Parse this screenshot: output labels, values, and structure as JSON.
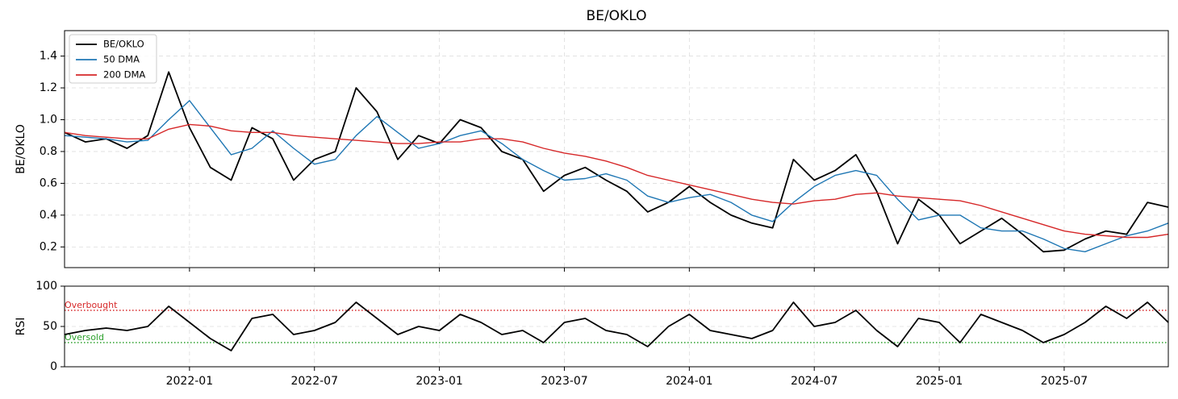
{
  "chart_data": [
    {
      "type": "line",
      "title": "BE/OKLO",
      "y_label": "BE/OKLO",
      "grid": true,
      "legend": "upper left",
      "x": [
        "2021-07",
        "2021-08",
        "2021-09",
        "2021-10",
        "2021-11",
        "2021-12",
        "2022-01",
        "2022-02",
        "2022-03",
        "2022-04",
        "2022-05",
        "2022-06",
        "2022-07",
        "2022-08",
        "2022-09",
        "2022-10",
        "2022-11",
        "2022-12",
        "2023-01",
        "2023-02",
        "2023-03",
        "2023-04",
        "2023-05",
        "2023-06",
        "2023-07",
        "2023-08",
        "2023-09",
        "2023-10",
        "2023-11",
        "2023-12",
        "2024-01",
        "2024-02",
        "2024-03",
        "2024-04",
        "2024-05",
        "2024-06",
        "2024-07",
        "2024-08",
        "2024-09",
        "2024-10",
        "2024-11",
        "2024-12",
        "2025-01",
        "2025-02",
        "2025-03",
        "2025-04",
        "2025-05",
        "2025-06",
        "2025-07",
        "2025-08",
        "2025-09",
        "2025-10",
        "2025-11",
        "2025-12"
      ],
      "xlim": [
        "2021-07",
        "2025-12"
      ],
      "ylim": [
        0.07,
        1.56
      ],
      "yticks": [
        0.2,
        0.4,
        0.6,
        0.8,
        {
          "value": 1,
          "label": "1.0"
        },
        1.2,
        1.4
      ],
      "series": [
        {
          "name": "BE/OKLO",
          "color": "#000000",
          "values": [
            0.92,
            0.86,
            0.88,
            0.82,
            0.9,
            1.3,
            0.95,
            0.7,
            0.62,
            0.95,
            0.88,
            0.62,
            0.75,
            0.8,
            1.2,
            1.05,
            0.75,
            0.9,
            0.85,
            1.0,
            0.95,
            0.8,
            0.75,
            0.55,
            0.65,
            0.7,
            0.62,
            0.55,
            0.42,
            0.48,
            0.58,
            0.48,
            0.4,
            0.35,
            0.32,
            0.75,
            0.62,
            0.68,
            0.78,
            0.55,
            0.22,
            0.5,
            0.4,
            0.22,
            0.3,
            0.38,
            0.28,
            0.17,
            0.18,
            0.25,
            0.3,
            0.28,
            0.48,
            0.45
          ]
        },
        {
          "name": "50 DMA",
          "color": "#1f77b4",
          "values": [
            0.9,
            0.89,
            0.88,
            0.86,
            0.87,
            1.0,
            1.12,
            0.95,
            0.78,
            0.82,
            0.93,
            0.82,
            0.72,
            0.75,
            0.9,
            1.02,
            0.92,
            0.82,
            0.85,
            0.9,
            0.93,
            0.85,
            0.75,
            0.68,
            0.62,
            0.63,
            0.66,
            0.62,
            0.52,
            0.48,
            0.51,
            0.53,
            0.48,
            0.4,
            0.36,
            0.48,
            0.58,
            0.65,
            0.68,
            0.65,
            0.5,
            0.37,
            0.4,
            0.4,
            0.32,
            0.3,
            0.3,
            0.25,
            0.19,
            0.17,
            0.22,
            0.27,
            0.3,
            0.35
          ]
        },
        {
          "name": "200 DMA",
          "color": "#d62728",
          "values": [
            0.92,
            0.9,
            0.89,
            0.88,
            0.88,
            0.94,
            0.97,
            0.96,
            0.93,
            0.92,
            0.92,
            0.9,
            0.89,
            0.88,
            0.87,
            0.86,
            0.85,
            0.85,
            0.86,
            0.86,
            0.88,
            0.88,
            0.86,
            0.82,
            0.79,
            0.77,
            0.74,
            0.7,
            0.65,
            0.62,
            0.59,
            0.56,
            0.53,
            0.5,
            0.48,
            0.47,
            0.49,
            0.5,
            0.53,
            0.54,
            0.52,
            0.51,
            0.5,
            0.49,
            0.46,
            0.42,
            0.38,
            0.34,
            0.3,
            0.28,
            0.27,
            0.26,
            0.26,
            0.28
          ]
        }
      ]
    },
    {
      "type": "line",
      "y_label": "RSI",
      "grid": true,
      "x": [
        "2021-07",
        "2021-08",
        "2021-09",
        "2021-10",
        "2021-11",
        "2021-12",
        "2022-01",
        "2022-02",
        "2022-03",
        "2022-04",
        "2022-05",
        "2022-06",
        "2022-07",
        "2022-08",
        "2022-09",
        "2022-10",
        "2022-11",
        "2022-12",
        "2023-01",
        "2023-02",
        "2023-03",
        "2023-04",
        "2023-05",
        "2023-06",
        "2023-07",
        "2023-08",
        "2023-09",
        "2023-10",
        "2023-11",
        "2023-12",
        "2024-01",
        "2024-02",
        "2024-03",
        "2024-04",
        "2024-05",
        "2024-06",
        "2024-07",
        "2024-08",
        "2024-09",
        "2024-10",
        "2024-11",
        "2024-12",
        "2025-01",
        "2025-02",
        "2025-03",
        "2025-04",
        "2025-05",
        "2025-06",
        "2025-07",
        "2025-08",
        "2025-09",
        "2025-10",
        "2025-11",
        "2025-12"
      ],
      "xlim": [
        "2021-07",
        "2025-12"
      ],
      "xticks": [
        "2022-01",
        "2022-07",
        "2023-01",
        "2023-07",
        "2024-01",
        "2024-07",
        "2025-01",
        "2025-07"
      ],
      "ylim": [
        0,
        100
      ],
      "yticks": [
        0,
        50,
        100
      ],
      "hlines": [
        {
          "value": 70,
          "label": "Overbought",
          "color": "#d62728"
        },
        {
          "value": 30,
          "label": "Oversold",
          "color": "#2ca02c"
        }
      ],
      "series": [
        {
          "name": "RSI",
          "color": "#000000",
          "values": [
            40,
            45,
            48,
            45,
            50,
            75,
            55,
            35,
            20,
            60,
            65,
            40,
            45,
            55,
            80,
            60,
            40,
            50,
            45,
            65,
            55,
            40,
            45,
            30,
            55,
            60,
            45,
            40,
            25,
            50,
            65,
            45,
            40,
            35,
            45,
            80,
            50,
            55,
            70,
            45,
            25,
            60,
            55,
            30,
            65,
            55,
            45,
            30,
            40,
            55,
            75,
            60,
            80,
            55
          ]
        }
      ]
    }
  ]
}
